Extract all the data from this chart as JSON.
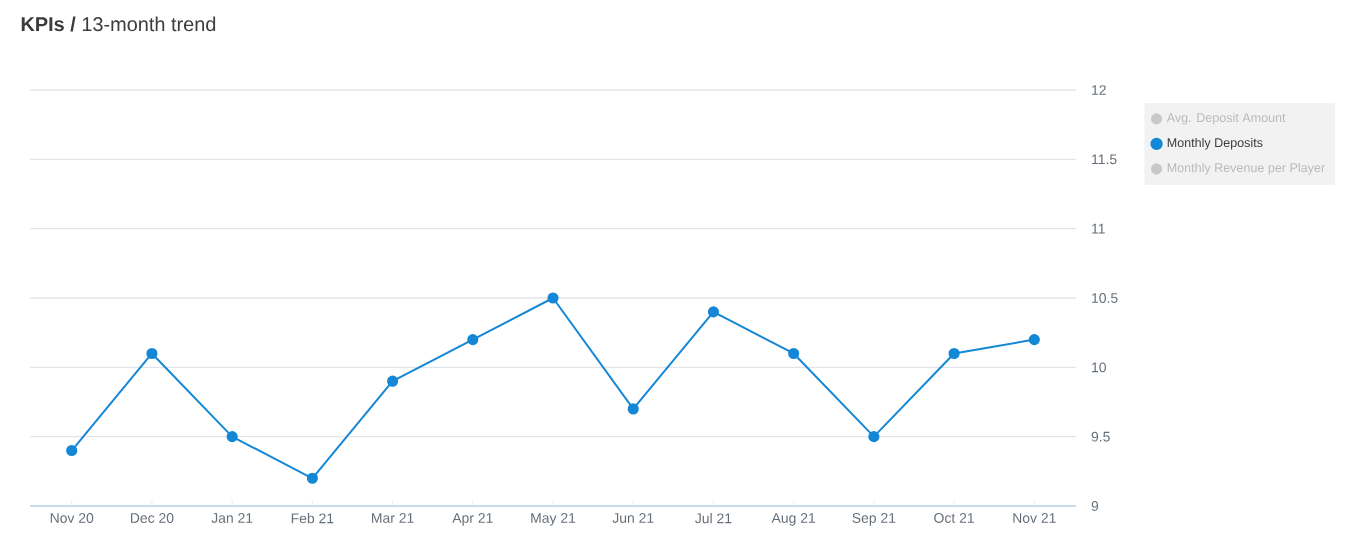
{
  "chart_data": {
    "type": "line",
    "title": "**KPIs /** 13-month trend",
    "categories": [
      "Nov 20",
      "Dec 20",
      "Jan 21",
      "Feb 21",
      "Mar 21",
      "Apr 21",
      "May 21",
      "Jun 21",
      "Jul 21",
      "Aug 21",
      "Sep 21",
      "Oct 21",
      "Nov 21"
    ],
    "series": [
      {
        "name": "Avg. Deposit Amount",
        "color": "#c8c8c8",
        "values": [
          null,
          null,
          null,
          null,
          null,
          null,
          null,
          null,
          null,
          null,
          null,
          null,
          null
        ]
      },
      {
        "name": "Monthly Deposits",
        "color": "#1487d6",
        "values": [
          9.4,
          10.1,
          9.5,
          9.2,
          9.9,
          10.2,
          10.5,
          9.7,
          10.4,
          10.1,
          9.5,
          10.1,
          10.2
        ]
      },
      {
        "name": "Monthly Revenue per Player",
        "color": "#c8c8c8",
        "values": [
          null,
          null,
          null,
          null,
          null,
          null,
          null,
          null,
          null,
          null,
          null,
          null,
          null
        ]
      }
    ],
    "ylim": [
      9,
      12
    ],
    "yticks": [
      9,
      9.5,
      10,
      10.5,
      11,
      11.5,
      12
    ],
    "grid": "y",
    "legend": "top right",
    "marker": "circle",
    "line_style": "solid"
  }
}
